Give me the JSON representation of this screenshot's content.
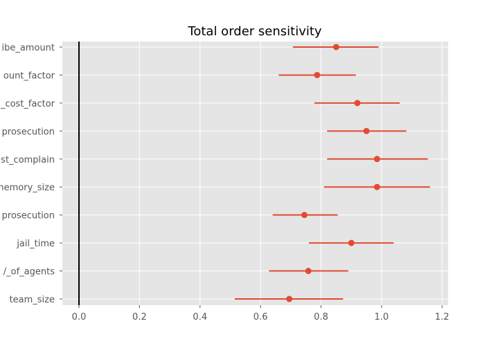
{
  "chart_data": {
    "type": "scatter",
    "title": "Total order sensitivity",
    "xlabel": "",
    "ylabel": "",
    "xlim": [
      -0.055,
      1.22
    ],
    "x_ticks": [
      0.0,
      0.2,
      0.4,
      0.6,
      0.8,
      1.0,
      1.2
    ],
    "x_tick_labels": [
      "0.0",
      "0.2",
      "0.4",
      "0.6",
      "0.8",
      "1.0",
      "1.2"
    ],
    "grid": true,
    "reference_line_x": 0,
    "categories": [
      "bribe_amount",
      "discount_factor",
      "cost_factor",
      "prosecution",
      "cost_complain",
      "memory_size",
      "prosecution",
      "jail_time",
      "number_of_agents",
      "team_size"
    ],
    "visible_tick_labels": [
      "ibe_amount",
      "ount_factor",
      "_cost_factor",
      "prosecution",
      "st_complain",
      "nemory_size",
      "prosecution",
      "jail_time",
      "/_of_agents",
      "team_size"
    ],
    "points": [
      {
        "value": 0.85,
        "low": 0.707,
        "high": 0.99
      },
      {
        "value": 0.787,
        "low": 0.66,
        "high": 0.915
      },
      {
        "value": 0.92,
        "low": 0.778,
        "high": 1.06
      },
      {
        "value": 0.95,
        "low": 0.82,
        "high": 1.082
      },
      {
        "value": 0.985,
        "low": 0.82,
        "high": 1.153
      },
      {
        "value": 0.985,
        "low": 0.81,
        "high": 1.16
      },
      {
        "value": 0.745,
        "low": 0.64,
        "high": 0.855
      },
      {
        "value": 0.9,
        "low": 0.76,
        "high": 1.04
      },
      {
        "value": 0.758,
        "low": 0.628,
        "high": 0.89
      },
      {
        "value": 0.695,
        "low": 0.515,
        "high": 0.873
      }
    ],
    "colors": {
      "marker": "#E24A33",
      "background": "#E5E5E5",
      "grid": "#FFFFFF",
      "reference_line": "#000000"
    }
  }
}
